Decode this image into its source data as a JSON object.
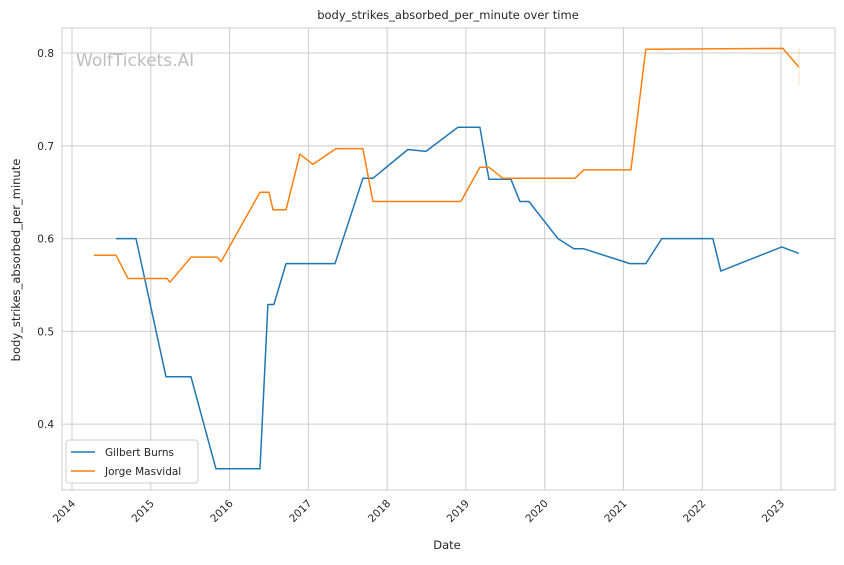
{
  "chart_data": {
    "type": "line",
    "title": "body_strikes_absorbed_per_minute over time",
    "xlabel": "Date",
    "ylabel": "body_strikes_absorbed_per_minute",
    "watermark": "WolfTickets.AI",
    "xlim": [
      2013.873,
      2023.685
    ],
    "ylim": [
      0.329,
      0.827
    ],
    "grid": true,
    "legend_position": "bottom-left",
    "x_ticks": [
      2014,
      2015,
      2016,
      2017,
      2018,
      2019,
      2020,
      2021,
      2022,
      2023
    ],
    "x_tick_labels": [
      "2014",
      "2015",
      "2016",
      "2017",
      "2018",
      "2019",
      "2020",
      "2021",
      "2022",
      "2023"
    ],
    "y_ticks": [
      0.4,
      0.5,
      0.6,
      0.7,
      0.8
    ],
    "y_tick_labels": [
      "0.4",
      "0.5",
      "0.6",
      "0.7",
      "0.8"
    ],
    "series": [
      {
        "name": "Gilbert Burns",
        "color": "#1f77b4",
        "x": [
          2014.558,
          2014.812,
          2015.193,
          2015.51,
          2015.827,
          2016.386,
          2016.487,
          2016.563,
          2016.716,
          2017.338,
          2017.693,
          2017.82,
          2018.264,
          2018.492,
          2018.898,
          2019.178,
          2019.292,
          2019.571,
          2019.685,
          2019.799,
          2020.168,
          2020.371,
          2020.497,
          2021.081,
          2021.284,
          2021.487,
          2022.135,
          2022.236,
          2023.01,
          2023.226
        ],
        "y": [
          0.6,
          0.6,
          0.451,
          0.451,
          0.352,
          0.352,
          0.529,
          0.529,
          0.573,
          0.573,
          0.665,
          0.665,
          0.696,
          0.694,
          0.72,
          0.72,
          0.664,
          0.664,
          0.64,
          0.64,
          0.6,
          0.589,
          0.589,
          0.573,
          0.573,
          0.6,
          0.6,
          0.565,
          0.591,
          0.584
        ]
      },
      {
        "name": "Jorge Masvidal",
        "color": "#ff7f0e",
        "x": [
          2014.279,
          2014.558,
          2014.711,
          2015.206,
          2015.244,
          2015.51,
          2015.84,
          2015.891,
          2016.386,
          2016.5,
          2016.551,
          2016.716,
          2016.893,
          2017.058,
          2017.35,
          2017.693,
          2017.82,
          2018.937,
          2019.178,
          2019.292,
          2019.47,
          2020.383,
          2020.497,
          2021.094,
          2021.284,
          2023.023,
          2023.226
        ],
        "y": [
          0.582,
          0.582,
          0.557,
          0.557,
          0.553,
          0.58,
          0.58,
          0.575,
          0.65,
          0.65,
          0.631,
          0.631,
          0.691,
          0.68,
          0.697,
          0.697,
          0.64,
          0.64,
          0.677,
          0.677,
          0.665,
          0.665,
          0.674,
          0.674,
          0.804,
          0.805,
          0.785
        ]
      }
    ]
  }
}
